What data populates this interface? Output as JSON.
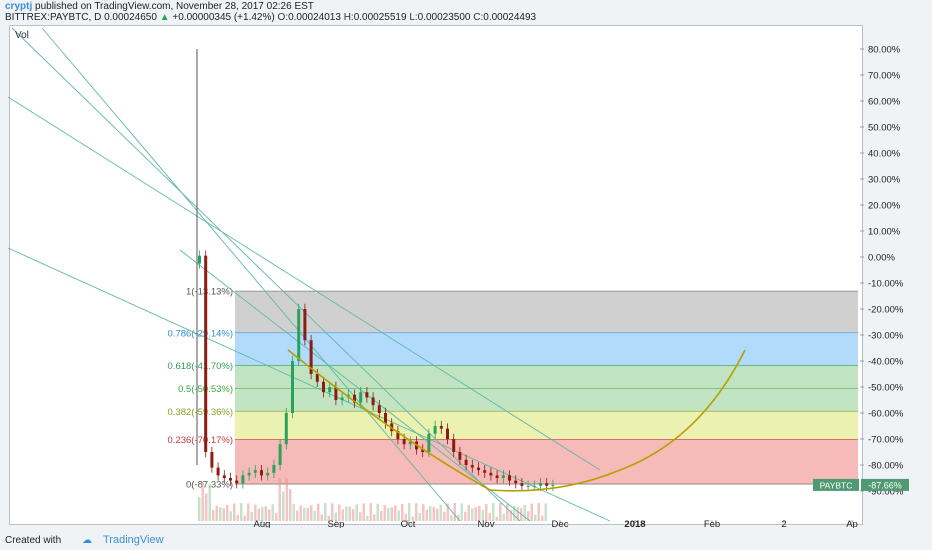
{
  "header": {
    "author": "cryptj",
    "published": " published on TradingView.com, November 28, 2017 02:26 EST",
    "symbol": "BITTREX:PAYBTC, D",
    "price": "0.00024650",
    "change": "+0.00000345 (+1.42%)",
    "o_label": "O:",
    "o": "0.00024013",
    "h_label": "H:",
    "h": "0.00025519",
    "l_label": "L:",
    "l": "0.00023500",
    "c_label": "C:",
    "c": "0.00024493"
  },
  "footer": {
    "created_with": "Created with",
    "brand": "TradingView",
    "logo": "tradingview-cloud-icon"
  },
  "colors": {
    "up": "#2aa25a",
    "down": "#8c1b12",
    "fib_levels": [
      "#9e9e9e",
      "#2196f3",
      "#4caf50",
      "#66bb6a",
      "#cddc39",
      "#e53935"
    ],
    "trendline": "#5fb8a8",
    "curve": "#b5a000",
    "badge": "#4f9a72"
  },
  "chart_data": {
    "type": "candlestick",
    "indicator_label": "Vol",
    "y_axis": {
      "scale": "percent",
      "ticks": [
        "80.00%",
        "70.00%",
        "60.00%",
        "50.00%",
        "40.00%",
        "30.00%",
        "20.00%",
        "10.00%",
        "0.00%",
        "-10.00%",
        "-20.00%",
        "-30.00%",
        "-40.00%",
        "-50.00%",
        "-60.00%",
        "-70.00%",
        "-80.00%",
        "-90.00%"
      ],
      "tick_values": [
        80,
        70,
        60,
        50,
        40,
        30,
        20,
        10,
        0,
        -10,
        -20,
        -30,
        -40,
        -50,
        -60,
        -70,
        -80,
        -90
      ],
      "range": [
        -97,
        90
      ]
    },
    "x_axis": {
      "ticks": [
        "Aug",
        "Sep",
        "Oct",
        "Nov",
        "Dec",
        "2018",
        "Feb",
        "2",
        "Ap"
      ]
    },
    "fibonacci": [
      {
        "ratio": "1",
        "label": "1(-13.13%)",
        "value": -13.13,
        "color": "#555555"
      },
      {
        "ratio": "0.786",
        "label": "0.786(-29.14%)",
        "value": -29.14,
        "color": "#2d8fd5"
      },
      {
        "ratio": "0.618",
        "label": "0.618(-41.70%)",
        "value": -41.7,
        "color": "#2e9e5a"
      },
      {
        "ratio": "0.5",
        "label": "0.5(-50.53%)",
        "value": -50.53,
        "color": "#3aa83a"
      },
      {
        "ratio": "0.382",
        "label": "0.382(-59.36%)",
        "value": -59.36,
        "color": "#8aa21e"
      },
      {
        "ratio": "0.236",
        "label": "0.236(-70.17%)",
        "value": -70.17,
        "color": "#c43a3a"
      },
      {
        "ratio": "0",
        "label": "0(-87.33%)",
        "value": -87.33,
        "color": "#555555"
      }
    ],
    "last_price": {
      "symbol": "PAYBTC",
      "value": "-87.66%"
    },
    "series_close_pct": [
      0.5,
      -75,
      -81,
      -84,
      -85,
      -86,
      -87,
      -84,
      -83,
      -82,
      -84,
      -83,
      -80,
      -72,
      -60,
      -40,
      -20,
      -32,
      -45,
      -48,
      -52,
      -50,
      -55,
      -54,
      -53,
      -56,
      -52,
      -54,
      -57,
      -60,
      -64,
      -67,
      -70,
      -72,
      -71,
      -74,
      -75,
      -68,
      -65,
      -66,
      -70,
      -75,
      -78,
      -80,
      -81,
      -82,
      -83,
      -84,
      -85,
      -84,
      -86,
      -87,
      -88,
      -88,
      -88,
      -87,
      -88,
      -87.66
    ]
  }
}
